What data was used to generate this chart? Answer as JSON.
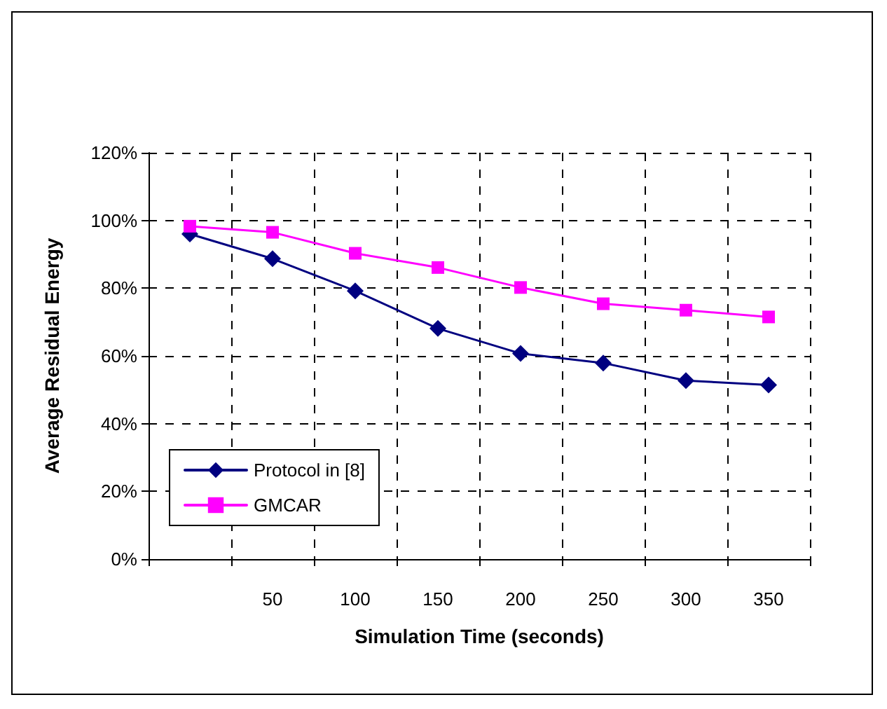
{
  "chart_data": {
    "type": "line",
    "xlabel": "Simulation Time (seconds)",
    "ylabel": "Average Residual Energy",
    "categories": [
      null,
      "50",
      "100",
      "150",
      "200",
      "250",
      "300",
      "350"
    ],
    "series": [
      {
        "name": "Protocol in [8]",
        "color": "#000080",
        "marker": "diamond",
        "values": [
          96,
          88.7,
          79.2,
          68.1,
          60.7,
          57.9,
          52.7,
          51.4
        ]
      },
      {
        "name": "GMCAR",
        "color": "#ff00ff",
        "marker": "square",
        "values": [
          98.3,
          96.5,
          90.3,
          86.1,
          80.2,
          75.4,
          73.5,
          71.5
        ]
      }
    ],
    "ylim": [
      0,
      120
    ],
    "yticks": [
      {
        "value": 0,
        "label": "0%"
      },
      {
        "value": 20,
        "label": "20%"
      },
      {
        "value": 40,
        "label": "40%"
      },
      {
        "value": 60,
        "label": "60%"
      },
      {
        "value": 80,
        "label": "80%"
      },
      {
        "value": 100,
        "label": "100%"
      },
      {
        "value": 120,
        "label": "120%"
      }
    ],
    "grid": true,
    "legend": "bottom left",
    "line_style": "solid"
  }
}
